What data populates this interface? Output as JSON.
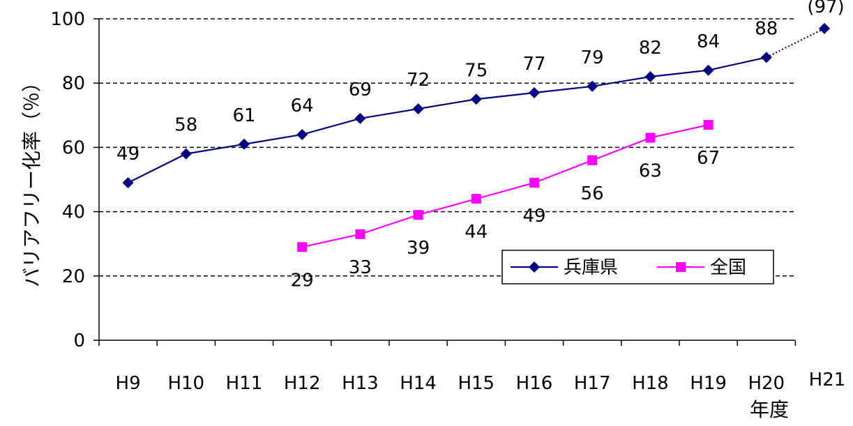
{
  "chart_data": {
    "type": "line",
    "categories": [
      "H9",
      "H10",
      "H11",
      "H12",
      "H13",
      "H14",
      "H15",
      "H16",
      "H17",
      "H18",
      "H19",
      "H20",
      "H21"
    ],
    "ylabel": "バリアフリー化率（％）",
    "xlabel": "年度",
    "ylim": [
      0,
      100
    ],
    "yticks": [
      0,
      20,
      40,
      60,
      80,
      100
    ],
    "grid": "horizontal dashed",
    "legend_position": "bottom-right",
    "series": [
      {
        "name": "兵庫県",
        "color": "#000080",
        "marker": "diamond",
        "values": [
          49,
          58,
          61,
          64,
          69,
          72,
          75,
          77,
          79,
          82,
          84,
          88,
          97
        ],
        "labels": [
          "49",
          "58",
          "61",
          "64",
          "69",
          "72",
          "75",
          "77",
          "79",
          "82",
          "84",
          "88",
          "(97)"
        ],
        "projected_from_index": 11
      },
      {
        "name": "全国",
        "color": "#FF00FF",
        "marker": "square",
        "values": [
          null,
          null,
          null,
          29,
          33,
          39,
          44,
          49,
          56,
          63,
          67,
          null,
          null
        ],
        "labels": [
          null,
          null,
          null,
          "29",
          "33",
          "39",
          "44",
          "49",
          "56",
          "63",
          "67",
          null,
          null
        ]
      }
    ]
  }
}
